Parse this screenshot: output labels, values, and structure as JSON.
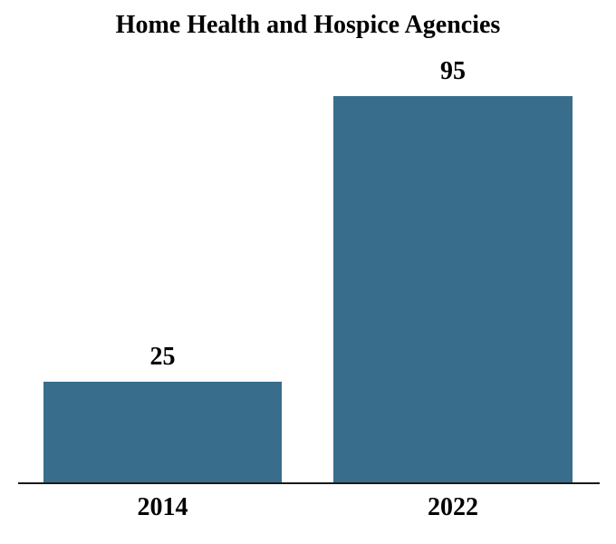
{
  "chart_data": {
    "type": "bar",
    "title": "Home Health and Hospice Agencies",
    "categories": [
      "2014",
      "2022"
    ],
    "values": [
      25,
      95
    ],
    "value_labels": [
      "25",
      "95"
    ],
    "xlabel": "",
    "ylabel": "",
    "ylim": [
      0,
      100
    ],
    "grid": false,
    "legend": false,
    "bar_color": "#386d8c",
    "axis_color": "#1a1a1a",
    "text_color": "#000000"
  }
}
